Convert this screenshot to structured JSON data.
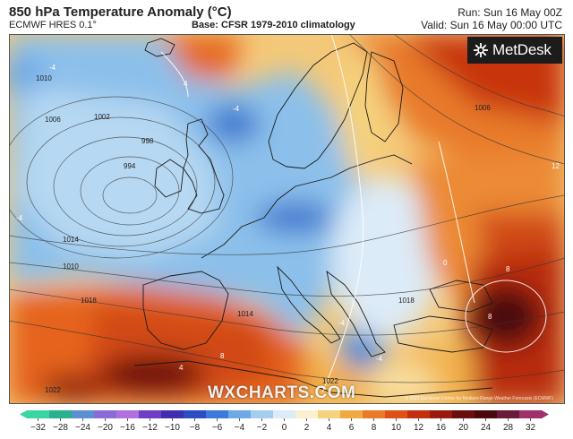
{
  "header": {
    "title": "850 hPa Temperature Anomaly (°C)",
    "model": "ECMWF HRES 0.1°",
    "base": "Base: CFSR 1979-2010 climatology",
    "run": "Run: Sun 16 May 00Z",
    "valid": "Valid: Sun 16 May 00:00 UTC"
  },
  "logo": {
    "text": "MetDesk",
    "icon": "metdesk-logo-icon"
  },
  "watermark": "WXCHARTS.COM",
  "copyright": "© 2021 European Centre for Medium-Range Weather Forecasts (ECMWF)",
  "isobar_labels": [
    "994",
    "998",
    "1002",
    "1006",
    "1010",
    "1014",
    "1018",
    "1022",
    "1006",
    "1010",
    "1014",
    "1018",
    "1022"
  ],
  "contour_labels": [
    "-4",
    "4",
    "-4",
    "-4",
    "8",
    "8",
    "8",
    "4",
    "-4",
    "12",
    "0",
    "-4"
  ],
  "colorbar": {
    "ticks": [
      "−32",
      "−28",
      "−24",
      "−20",
      "−16",
      "−12",
      "−10",
      "−8",
      "−6",
      "−4",
      "−2",
      "0",
      "2",
      "4",
      "6",
      "8",
      "10",
      "12",
      "16",
      "20",
      "24",
      "28",
      "32"
    ],
    "colors": [
      "#3bd4a4",
      "#2ab08c",
      "#5a8fd0",
      "#8a6bd8",
      "#b070e0",
      "#6e3ec4",
      "#3f2fb0",
      "#2c4ec4",
      "#3a7ad8",
      "#6ea8e6",
      "#a4cdf0",
      "#dcebf8",
      "#fbf1d0",
      "#f5d27c",
      "#f0aa44",
      "#ea7a28",
      "#dc5216",
      "#c4300e",
      "#9a1a0e",
      "#6a0e0e",
      "#4a0a0c",
      "#6a1a3a",
      "#a0306a"
    ]
  }
}
